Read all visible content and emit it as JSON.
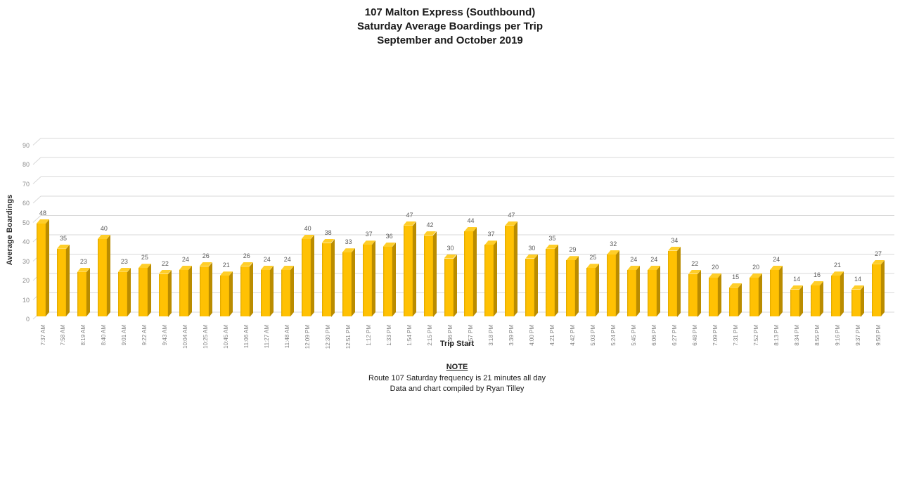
{
  "title_lines": [
    "107 Malton Express (Southbound)",
    "Saturday Average Boardings per Trip",
    "September and October 2019"
  ],
  "chart_data": {
    "type": "bar",
    "style": "3d-column",
    "title": "107 Malton Express (Southbound) Saturday Average Boardings per Trip September and October 2019",
    "xlabel": "Trip Start",
    "ylabel": "Average Boardings",
    "ylim": [
      0,
      90
    ],
    "yticks": [
      0,
      10,
      20,
      30,
      40,
      50,
      60,
      70,
      80,
      90
    ],
    "grid": true,
    "legend": false,
    "data_labels": true,
    "bar_color": "#FFC103",
    "bar_side_color": "#BA8C00",
    "bar_top_color": "#FFCE29",
    "gridline_color": "#D9D9D9",
    "categories": [
      "7:37 AM",
      "7:58 AM",
      "8:19 AM",
      "8:40 AM",
      "9:01 AM",
      "9:22 AM",
      "9:43 AM",
      "10:04 AM",
      "10:25 AM",
      "10:45 AM",
      "11:06 AM",
      "11:27 AM",
      "11:48 AM",
      "12:09 PM",
      "12:30 PM",
      "12:51 PM",
      "1:12 PM",
      "1:33 PM",
      "1:54 PM",
      "2:15 PM",
      "2:36 PM",
      "2:57 PM",
      "3:18 PM",
      "3:39 PM",
      "4:00 PM",
      "4:21 PM",
      "4:42 PM",
      "5:03 PM",
      "5:24 PM",
      "5:45 PM",
      "6:06 PM",
      "6:27 PM",
      "6:48 PM",
      "7:09 PM",
      "7:31 PM",
      "7:52 PM",
      "8:13 PM",
      "8:34 PM",
      "8:55 PM",
      "9:16 PM",
      "9:37 PM",
      "9:58 PM"
    ],
    "values": [
      48,
      35,
      23,
      40,
      23,
      25,
      22,
      24,
      26,
      21,
      26,
      24,
      24,
      40,
      38,
      33,
      37,
      36,
      47,
      42,
      30,
      44,
      37,
      47,
      30,
      35,
      29,
      25,
      32,
      24,
      24,
      34,
      22,
      20,
      15,
      20,
      24,
      14,
      16,
      21,
      14,
      27
    ]
  },
  "note": {
    "heading": "NOTE",
    "lines": [
      "Route 107 Saturday frequency is 21 minutes all day",
      "Data and chart compiled by Ryan Tilley"
    ]
  }
}
